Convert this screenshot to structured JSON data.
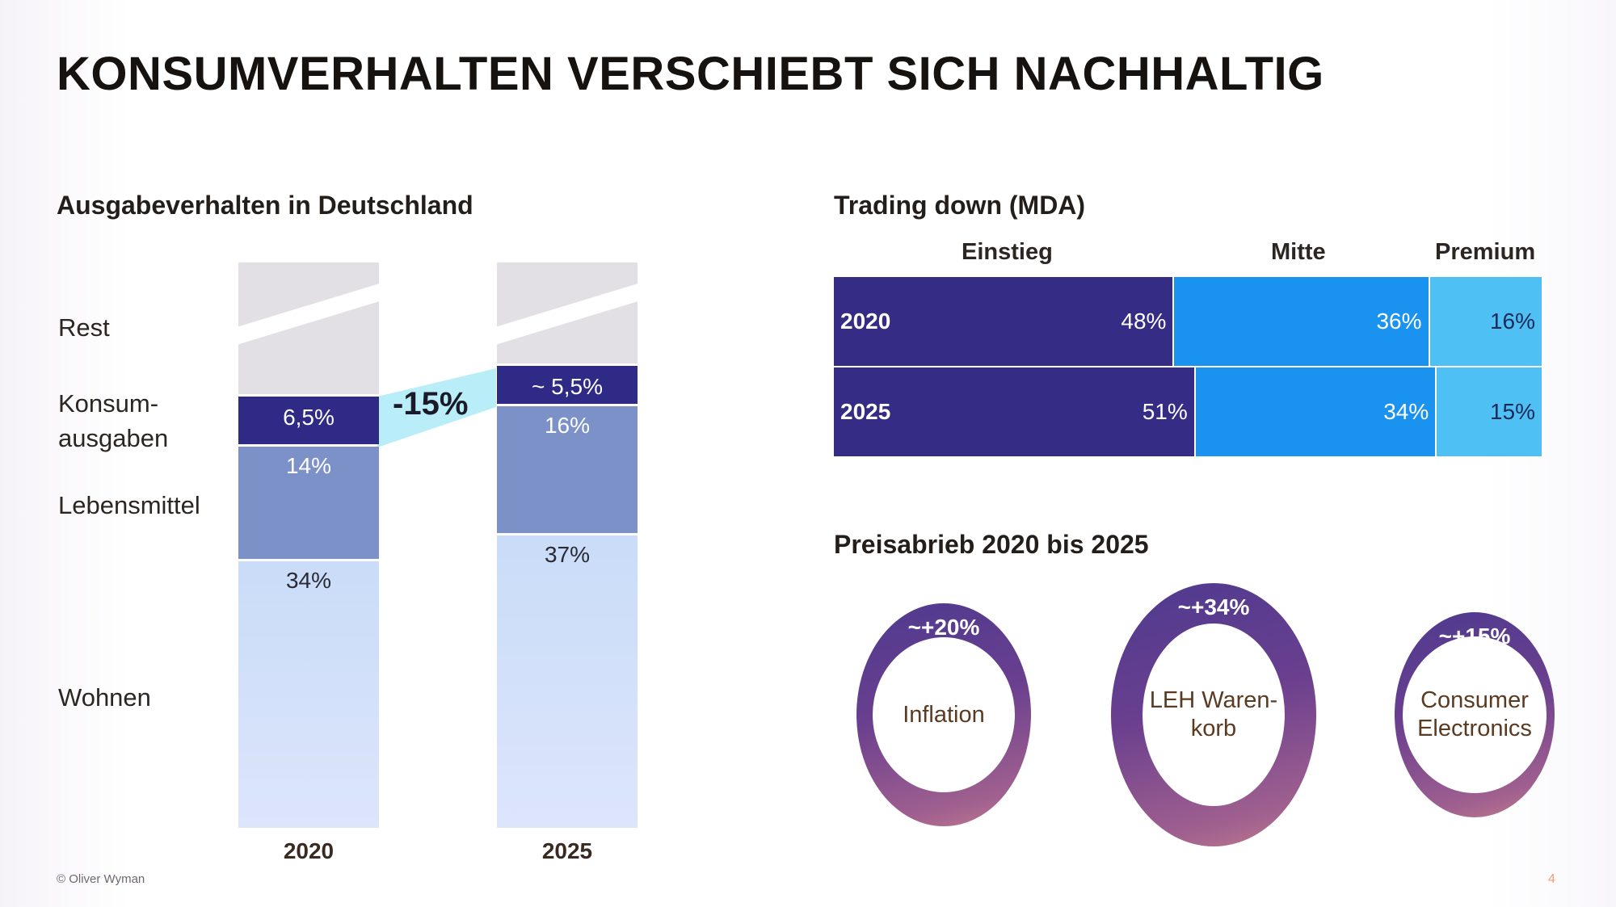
{
  "title": "KONSUMVERHALTEN VERSCHIEBT SICH NACHHALTIG",
  "left": {
    "section_title": "Ausgabeverhalten in Deutschland",
    "row_labels": [
      "Rest",
      "Konsum-\nausgaben",
      "Lebensmittel",
      "Wohnen"
    ],
    "delta_label": "-15%"
  },
  "right_top": {
    "section_title": "Trading down (MDA)",
    "column_headers": [
      "Einstieg",
      "Mitte",
      "Premium"
    ]
  },
  "right_bottom": {
    "section_title": "Preisabrieb 2020 bis 2025"
  },
  "footer": {
    "copyright": "© Oliver Wyman",
    "page_number": "4"
  },
  "colors": {
    "konsum": "#2e2a86",
    "lebensmittel": "#7c91c8",
    "wohnen": "#cfe0f9",
    "rest": "#e2e0e4",
    "delta_band": "#b9eef8",
    "einstieg": "#352c85",
    "mitte": "#1a93f0",
    "premium": "#4fc0f4"
  },
  "chart_data": [
    {
      "type": "bar",
      "stacked": true,
      "title": "Ausgabeverhalten in Deutschland",
      "categories": [
        "2020",
        "2025"
      ],
      "series": [
        {
          "name": "Wohnen",
          "values": [
            34,
            37
          ],
          "labels": [
            "34%",
            "37%"
          ]
        },
        {
          "name": "Lebensmittel",
          "values": [
            14,
            16
          ],
          "labels": [
            "14%",
            "16%"
          ]
        },
        {
          "name": "Konsumausgaben",
          "values": [
            6.5,
            5.5
          ],
          "labels": [
            "6,5%",
            "~ 5,5%"
          ]
        },
        {
          "name": "Rest",
          "values": [
            null,
            null
          ],
          "labels": [
            "",
            ""
          ]
        }
      ],
      "annotations": [
        {
          "text": "-15%",
          "between": "Konsumausgaben 2020 → 2025"
        }
      ],
      "axis_break": true
    },
    {
      "type": "bar",
      "orientation": "horizontal",
      "stacked": true,
      "title": "Trading down (MDA)",
      "categories": [
        "2020",
        "2025"
      ],
      "series": [
        {
          "name": "Einstieg",
          "values": [
            48,
            51
          ],
          "labels": [
            "48%",
            "51%"
          ]
        },
        {
          "name": "Mitte",
          "values": [
            36,
            34
          ],
          "labels": [
            "36%",
            "34%"
          ]
        },
        {
          "name": "Premium",
          "values": [
            16,
            15
          ],
          "labels": [
            "16%",
            "15%"
          ]
        }
      ],
      "xlim": [
        0,
        100
      ]
    },
    {
      "type": "pie",
      "variant": "donut",
      "title": "Preisabrieb 2020 bis 2025",
      "items": [
        {
          "name": "Inflation",
          "value": 20,
          "label": "~+20%"
        },
        {
          "name": "LEH Waren-\nkorb",
          "value": 34,
          "label": "~+34%"
        },
        {
          "name": "Consumer\nElectronics",
          "value": 15,
          "label": "~+15%"
        }
      ]
    }
  ]
}
